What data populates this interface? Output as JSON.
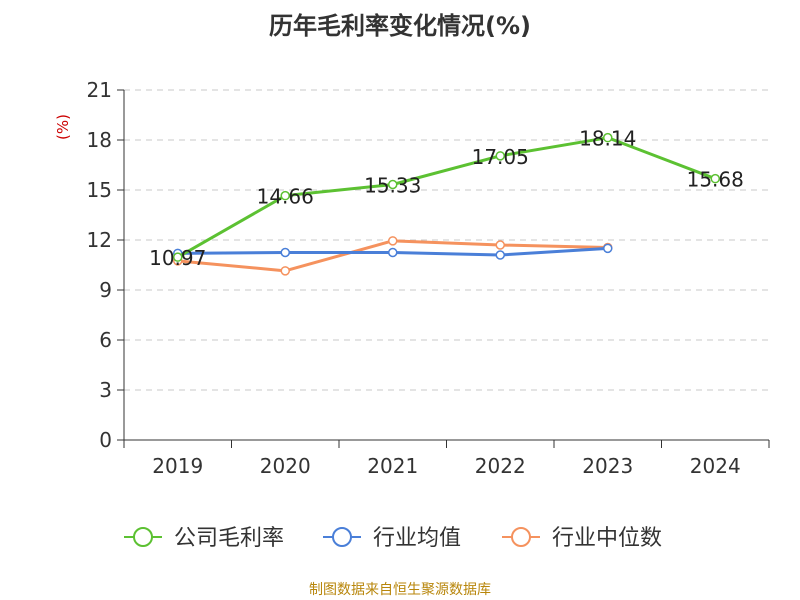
{
  "title": "历年毛利率变化情况(%)",
  "footer": "制图数据来自恒生聚源数据库",
  "chart_data": {
    "type": "line",
    "title": "历年毛利率变化情况(%)",
    "ylabel": "(%)",
    "xlabel": "",
    "categories": [
      "2019",
      "2020",
      "2021",
      "2022",
      "2023",
      "2024"
    ],
    "ylim": [
      0,
      21
    ],
    "yticks": [
      0,
      3,
      6,
      9,
      12,
      15,
      18,
      21
    ],
    "grid": true,
    "legend_position": "bottom",
    "series": [
      {
        "name": "公司毛利率",
        "color": "#5cc132",
        "values": [
          10.97,
          14.66,
          15.33,
          17.05,
          18.14,
          15.68
        ],
        "labels": true
      },
      {
        "name": "行业均值",
        "color": "#4a7fd8",
        "values": [
          11.2,
          11.25,
          11.25,
          11.1,
          11.5,
          null
        ],
        "labels": false
      },
      {
        "name": "行业中位数",
        "color": "#f5925e",
        "values": [
          10.75,
          10.15,
          11.95,
          11.7,
          11.55,
          null
        ],
        "labels": false
      }
    ]
  }
}
